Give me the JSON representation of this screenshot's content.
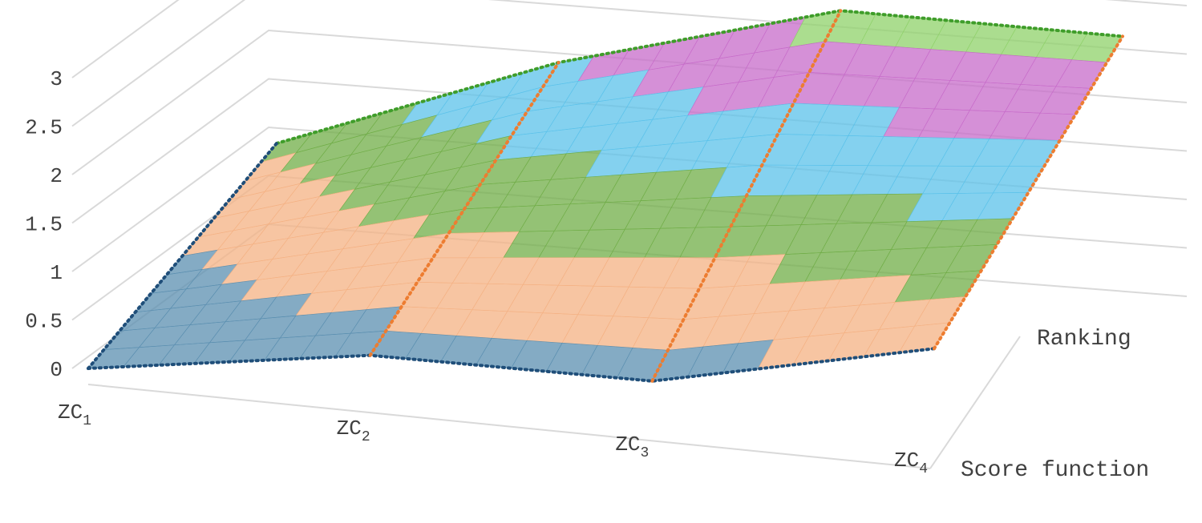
{
  "chart_data": {
    "type": "surface-3d",
    "x_categories": [
      {
        "id": "zc1",
        "base": "ZC",
        "sub": "1"
      },
      {
        "id": "zc2",
        "base": "ZC",
        "sub": "2"
      },
      {
        "id": "zc3",
        "base": "ZC",
        "sub": "3"
      },
      {
        "id": "zc4",
        "base": "ZC",
        "sub": "4"
      }
    ],
    "depth_series": [
      "Score function",
      "Ranking"
    ],
    "y_ticks": [
      "0",
      "0.5",
      "1",
      "1.5",
      "2",
      "2.5",
      "3"
    ],
    "ylim": [
      0,
      3
    ],
    "grid": true,
    "surface_values": {
      "Score function": [
        0,
        0.3,
        0.2,
        0.7
      ],
      "Ranking": [
        1,
        2,
        2.7,
        2.6
      ]
    },
    "value_bands": [
      {
        "range": [
          0,
          0.5
        ],
        "color": "#5B8FB0",
        "edge": "#1F4E79"
      },
      {
        "range": [
          0.5,
          1
        ],
        "color": "#F4B183",
        "edge": "#ED7D31"
      },
      {
        "range": [
          1,
          1.5
        ],
        "color": "#70AD47",
        "edge": "#1E6B20"
      },
      {
        "range": [
          1.5,
          2
        ],
        "color": "#5BC2EA",
        "edge": "#1FA0DC"
      },
      {
        "range": [
          2,
          2.5
        ],
        "color": "#C76BC9",
        "edge": "#9E2B9E"
      },
      {
        "range": [
          2.5,
          3
        ],
        "color": "#8FD16A",
        "edge": "#3F9D2A"
      }
    ]
  }
}
